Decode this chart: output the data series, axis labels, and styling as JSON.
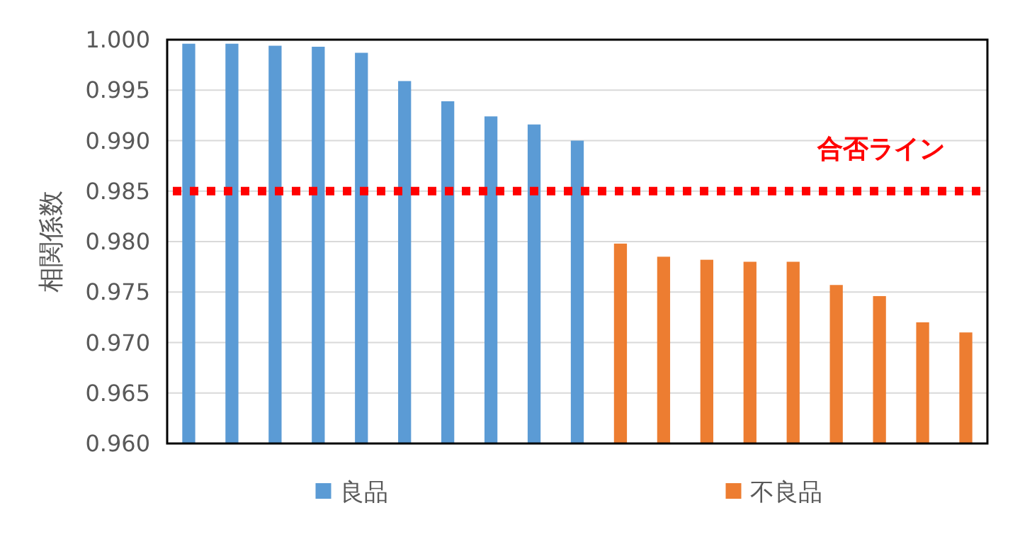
{
  "chart_data": {
    "type": "bar",
    "ylabel": "相関係数",
    "categories": [
      null,
      null,
      null,
      null,
      null,
      null,
      null,
      null,
      null,
      null,
      null,
      null,
      null,
      null,
      null,
      null,
      null,
      null,
      null
    ],
    "series": [
      {
        "name": "良品",
        "color": "#5b9bd5",
        "values": [
          0.9996,
          0.9996,
          0.9994,
          0.9993,
          0.9987,
          0.9959,
          0.9939,
          0.9924,
          0.9916,
          0.99,
          null,
          null,
          null,
          null,
          null,
          null,
          null,
          null,
          null
        ]
      },
      {
        "name": "不良品",
        "color": "#ed7d31",
        "values": [
          null,
          null,
          null,
          null,
          null,
          null,
          null,
          null,
          null,
          null,
          0.9798,
          0.9785,
          0.9782,
          0.978,
          0.978,
          0.9757,
          0.9746,
          0.972,
          0.971
        ]
      }
    ],
    "ylim": [
      0.96,
      1.0
    ],
    "yticks": [
      {
        "value": 0.96,
        "label": "0.960"
      },
      {
        "value": 0.965,
        "label": "0.965"
      },
      {
        "value": 0.97,
        "label": "0.970"
      },
      {
        "value": 0.975,
        "label": "0.975"
      },
      {
        "value": 0.98,
        "label": "0.980"
      },
      {
        "value": 0.985,
        "label": "0.985"
      },
      {
        "value": 0.99,
        "label": "0.990"
      },
      {
        "value": 0.995,
        "label": "0.995"
      },
      {
        "value": 1.0,
        "label": "1.000"
      }
    ],
    "grid": "y",
    "legend": "bottom",
    "ref_lines": [
      {
        "axis": "y",
        "value": 0.985,
        "label": "合否ライン",
        "color": "#ff0000",
        "line_style": "dotted"
      }
    ]
  }
}
